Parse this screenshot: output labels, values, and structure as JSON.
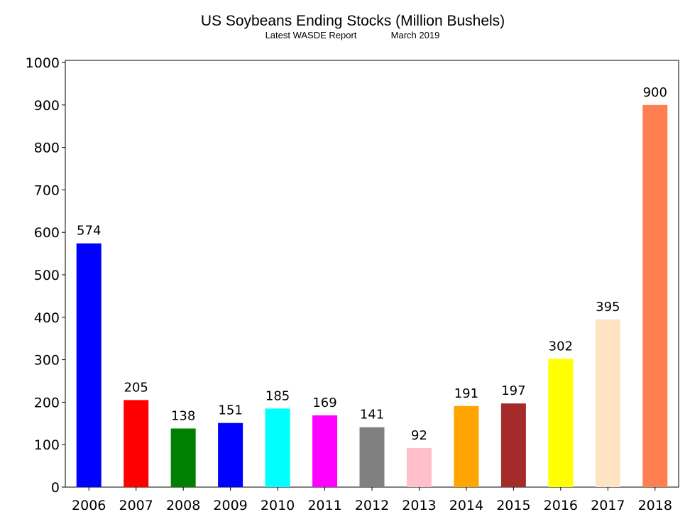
{
  "chart_data": {
    "type": "bar",
    "title": "US Soybeans Ending Stocks (Million Bushels)",
    "subtitle_left": "Latest WASDE Report",
    "subtitle_right": "March 2019",
    "categories": [
      "2006",
      "2007",
      "2008",
      "2009",
      "2010",
      "2011",
      "2012",
      "2013",
      "2014",
      "2015",
      "2016",
      "2017",
      "2018"
    ],
    "values": [
      574,
      205,
      138,
      151,
      185,
      169,
      141,
      92,
      191,
      197,
      302,
      395,
      900
    ],
    "colors": [
      "#0000ff",
      "#ff0000",
      "#008000",
      "#0000ff",
      "#00ffff",
      "#ff00ff",
      "#808080",
      "#ffc0cb",
      "#ffa500",
      "#a52a2a",
      "#ffff00",
      "#ffe4c4",
      "#ff7f50"
    ],
    "ylim": [
      0,
      1000
    ],
    "yticks": [
      0,
      100,
      200,
      300,
      400,
      500,
      600,
      700,
      800,
      900,
      1000
    ],
    "grid": false,
    "data_labels": true
  }
}
